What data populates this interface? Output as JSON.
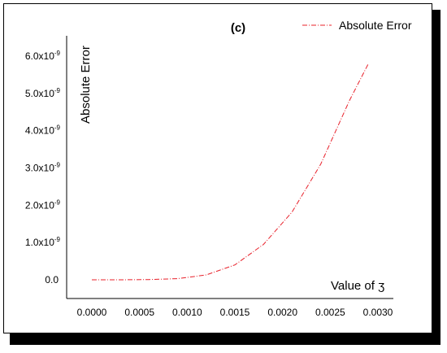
{
  "chart_data": {
    "type": "line",
    "title": "(c)",
    "xlabel": "Value of ʒ",
    "ylabel": "Absolute Error",
    "xlim": [
      0,
      0.003
    ],
    "ylim": [
      0,
      6e-09
    ],
    "x_ticks": [
      0.0,
      0.0005,
      0.001,
      0.0015,
      0.002,
      0.0025,
      0.003
    ],
    "x_tick_labels": [
      "0.0000",
      "0.0005",
      "0.0010",
      "0.0015",
      "0.0020",
      "0.0025",
      "0.0030"
    ],
    "y_ticks": [
      0,
      1e-09,
      2e-09,
      3e-09,
      4e-09,
      5e-09,
      6e-09
    ],
    "y_tick_labels": [
      {
        "mantissa": "0.0",
        "exp": ""
      },
      {
        "mantissa": "1.0x10",
        "exp": "-9"
      },
      {
        "mantissa": "2.0x10",
        "exp": "-9"
      },
      {
        "mantissa": "3.0x10",
        "exp": "-9"
      },
      {
        "mantissa": "4.0x10",
        "exp": "-9"
      },
      {
        "mantissa": "5.0x10",
        "exp": "-9"
      },
      {
        "mantissa": "6.0x10",
        "exp": "-9"
      }
    ],
    "legend_position": "top-right",
    "grid": false,
    "series": [
      {
        "name": "Absolute Error",
        "color": "#e8202a",
        "line_style": "dash-dot",
        "x": [
          0.0,
          0.0003,
          0.0006,
          0.0009,
          0.0012,
          0.0015,
          0.0018,
          0.0021,
          0.0024,
          0.0027,
          0.0029
        ],
        "y": [
          0.0,
          0.0,
          6e-12,
          3e-11,
          1.3e-10,
          4e-10,
          9.5e-10,
          1.82e-09,
          3.1e-09,
          4.8e-09,
          5.8e-09
        ]
      }
    ]
  }
}
